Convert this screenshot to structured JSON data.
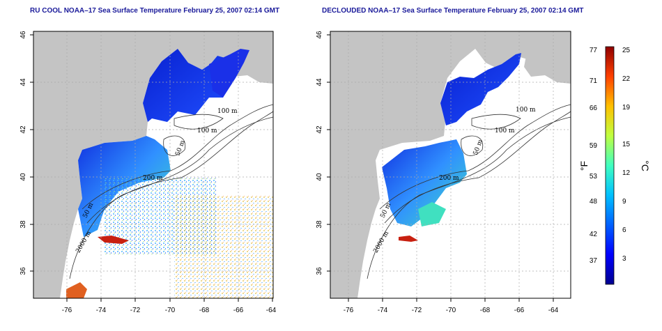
{
  "panels": [
    {
      "title": "RU COOL NOAA–17 Sea Surface Temperature February 25, 2007 02:14 GMT",
      "x_ticks": [
        "-76",
        "-74",
        "-72",
        "-70",
        "-68",
        "-66",
        "-64"
      ],
      "y_ticks": [
        "36",
        "38",
        "40",
        "42",
        "44",
        "46"
      ],
      "contour_labels": [
        "100 m",
        "100 m",
        "50 m",
        "200 m",
        "50 m",
        "2000 m"
      ]
    },
    {
      "title": "DECLOUDED NOAA–17 Sea Surface Temperature February 25, 2007 02:14 GMT",
      "x_ticks": [
        "-76",
        "-74",
        "-72",
        "-70",
        "-68",
        "-66",
        "-64"
      ],
      "y_ticks": [
        "36",
        "38",
        "40",
        "42",
        "44",
        "46"
      ],
      "contour_labels": [
        "100 m",
        "100 m",
        "50 m",
        "200 m",
        "50 m",
        "2000 m"
      ]
    }
  ],
  "colorbar": {
    "fahrenheit_labels": [
      "77",
      "71",
      "66",
      "59",
      "53",
      "48",
      "42",
      "37"
    ],
    "celsius_labels": [
      "25",
      "22",
      "19",
      "15",
      "12",
      "9",
      "6",
      "3"
    ],
    "unit_left": "°F",
    "unit_right": "°C",
    "colors": [
      "#00008f",
      "#0000ff",
      "#0060ff",
      "#00c0ff",
      "#40ffc0",
      "#c0ff40",
      "#ffc000",
      "#ff4000",
      "#8f0000"
    ]
  },
  "colors": {
    "land": "#c4c4c4",
    "water": "#ffffff",
    "grid": "#aaaaaa",
    "title": "#1a1a9a"
  }
}
